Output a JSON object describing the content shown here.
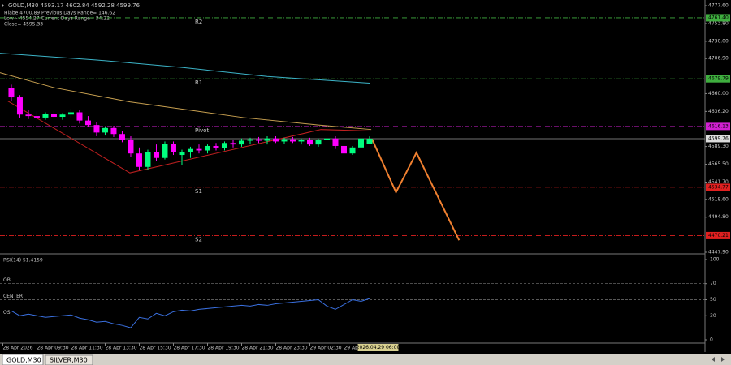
{
  "chart_data": [
    {
      "type": "candlestick",
      "title": "GOLD,M30  4593.17 4602.84 4592.28 4599.76",
      "info": [
        "Hiabe 4700.89   Previous Days Range= 146.62",
        "Low= 4554.27   Current Days Range= 34.22",
        "Close= 4595.33"
      ],
      "open": [
        4668,
        4655,
        4632,
        4630,
        4628,
        4633,
        4629,
        4632,
        4635,
        4624,
        4618,
        4608,
        4614,
        4606,
        4598,
        4580,
        4562,
        4582,
        4574,
        4593,
        4578,
        4582,
        4586,
        4584,
        4590,
        4587,
        4594,
        4592,
        4597,
        4599,
        4597,
        4600,
        4596,
        4599,
        4596,
        4598,
        4592,
        4598,
        4600,
        4590,
        4580,
        4588,
        4593.17
      ],
      "high": [
        4672,
        4658,
        4638,
        4636,
        4635,
        4637,
        4634,
        4640,
        4638,
        4630,
        4622,
        4616,
        4617,
        4610,
        4603,
        4588,
        4585,
        4592,
        4596,
        4596,
        4585,
        4589,
        4592,
        4592,
        4594,
        4596,
        4598,
        4600,
        4601,
        4602,
        4603,
        4603,
        4601,
        4602,
        4600,
        4601,
        4600,
        4612,
        4603,
        4594,
        4590,
        4603,
        4602.84
      ],
      "low": [
        4650,
        4628,
        4626,
        4624,
        4625,
        4627,
        4625,
        4628,
        4620,
        4615,
        4603,
        4604,
        4602,
        4595,
        4575,
        4558,
        4558,
        4570,
        4572,
        4578,
        4565,
        4574,
        4580,
        4580,
        4584,
        4584,
        4588,
        4589,
        4592,
        4594,
        4592,
        4594,
        4593,
        4594,
        4592,
        4590,
        4589,
        4596,
        4586,
        4575,
        4578,
        4585,
        4592.28
      ],
      "close": [
        4655,
        4632,
        4630,
        4628,
        4633,
        4629,
        4632,
        4635,
        4624,
        4618,
        4608,
        4614,
        4606,
        4598,
        4580,
        4562,
        4582,
        4574,
        4593,
        4582,
        4582,
        4586,
        4584,
        4590,
        4587,
        4594,
        4592,
        4597,
        4599,
        4597,
        4600,
        4596,
        4599,
        4596,
        4598,
        4592,
        4598,
        4600,
        4590,
        4580,
        4588,
        4600,
        4599.76
      ],
      "up_color": "#00ff7f",
      "down_color": "#ff00ff",
      "xlim": [
        -1.33,
        81.33
      ],
      "xticks": [
        {
          "value": -1,
          "label": "28 Apr 2026"
        },
        {
          "value": 3,
          "label": "28 Apr 09:30"
        },
        {
          "value": 7,
          "label": "28 Apr 11:30"
        },
        {
          "value": 11,
          "label": "28 Apr 13:30"
        },
        {
          "value": 15,
          "label": "28 Apr 15:30"
        },
        {
          "value": 19,
          "label": "28 Apr 17:30"
        },
        {
          "value": 23,
          "label": "28 Apr 19:30"
        },
        {
          "value": 27,
          "label": "28 Apr 21:30"
        },
        {
          "value": 31,
          "label": "28 Apr 23:30"
        },
        {
          "value": 35,
          "label": "29 Apr 02:30"
        },
        {
          "value": 39,
          "label": "29 Ap"
        }
      ],
      "cursor": {
        "value": 43,
        "label": "2026.04.29 06:00"
      },
      "ylim": [
        4446.8,
        4785.2
      ],
      "yticks": [
        {
          "value": 4777.6,
          "label": "4777.60"
        },
        {
          "value": 4753.8,
          "label": "4753.80"
        },
        {
          "value": 4730,
          "label": "4730.00"
        },
        {
          "value": 4706.9,
          "label": "4706.90"
        },
        {
          "value": 4660,
          "label": "4660.00"
        },
        {
          "value": 4636.2,
          "label": "4636.20"
        },
        {
          "value": 4589.3,
          "label": "4589.30"
        },
        {
          "value": 4565.5,
          "label": "4565.50"
        },
        {
          "value": 4541.7,
          "label": "4541.70"
        },
        {
          "value": 4518.6,
          "label": "4518.60"
        },
        {
          "value": 4494.8,
          "label": "4494.80"
        },
        {
          "value": 4447.9,
          "label": "4447.90"
        }
      ],
      "levels": [
        {
          "name": "R2",
          "value": 4761.4,
          "label": "4761.40",
          "color": "#3fae3f"
        },
        {
          "name": "R1",
          "value": 4679.79,
          "label": "4679.79",
          "color": "#3fae3f"
        },
        {
          "name": "Pivot",
          "value": 4616.13,
          "label": "4616.13",
          "color": "#d020d0"
        },
        {
          "name": "S1",
          "value": 4534.77,
          "label": "4534.77",
          "color": "#e02020"
        },
        {
          "name": "S2",
          "value": 4470.21,
          "label": "4470.21",
          "color": "#e02020"
        }
      ],
      "last_price": {
        "value": 4599.76,
        "label": "4599.76"
      },
      "lines": [
        {
          "color": "#3cb4c8",
          "x": [
            -1.33,
            10,
            20,
            30,
            42
          ],
          "values": [
            4714,
            4705,
            4695,
            4683,
            4674
          ]
        },
        {
          "color": "#c8a050",
          "x": [
            -1.33,
            5,
            13.9,
            27.2,
            36,
            42.2
          ],
          "values": [
            4688,
            4668,
            4649,
            4628,
            4618,
            4612
          ]
        },
        {
          "color": "#c02020",
          "x": [
            -0.4,
            13.9,
            36.3,
            42.3
          ],
          "values": [
            4650,
            4554,
            4612,
            4610
          ]
        },
        {
          "color": "#f08030",
          "x": [
            42.3,
            45.1,
            47.5,
            52.5
          ],
          "values": [
            4599,
            4528,
            4581,
            4464
          ]
        }
      ]
    },
    {
      "type": "line",
      "title": "RSI(14) 51.4159",
      "ylim": [
        -3.03,
        105.05
      ],
      "yticks": [
        0,
        30,
        50,
        70,
        100
      ],
      "levels": [
        {
          "name": "OB",
          "value": 70
        },
        {
          "name": "CENTER",
          "value": 50
        },
        {
          "name": "OS",
          "value": 30
        }
      ],
      "series": [
        {
          "color": "#3a70e0",
          "values": [
            36,
            30,
            32,
            30,
            28,
            29,
            30,
            31,
            27,
            25,
            22,
            23,
            20,
            18,
            15,
            28,
            26,
            33,
            30,
            35,
            37,
            36,
            38,
            39,
            40,
            41,
            42,
            43,
            42,
            44,
            43,
            45,
            46,
            47,
            48,
            49,
            50,
            42,
            38,
            44,
            50,
            48,
            51.4159
          ]
        }
      ]
    }
  ],
  "tabs": [
    "GOLD,M30",
    "SILVER,M30"
  ]
}
